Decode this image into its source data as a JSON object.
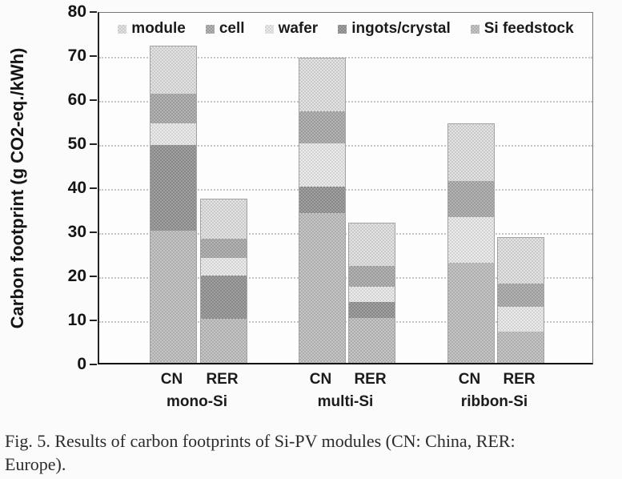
{
  "figure": {
    "caption_lines": [
      "Fig. 5.  Results of carbon footprints of Si-PV modules (CN: China, RER:",
      "Europe)."
    ]
  },
  "chart_data": {
    "type": "bar",
    "stacked": true,
    "title": "",
    "xlabel": "",
    "ylabel": "Carbon footprint (g CO2-eq./kWh)",
    "ylim": [
      0,
      80
    ],
    "ytick_step": 10,
    "grid": "horizontal dotted gridlines at each 10 units",
    "legend_position": "top-inside-horizontal",
    "legend_labels": [
      "module",
      "cell",
      "wafer",
      "ingots/crystal",
      "Si feedstock"
    ],
    "stack_order_bottom_to_top": [
      "Si feedstock",
      "ingots/crystal",
      "wafer",
      "cell",
      "module"
    ],
    "colors": {
      "module": [
        "#c9c9c9",
        "#e3e3e3"
      ],
      "cell": [
        "#9a9a9a",
        "#b4b4b4"
      ],
      "wafer": [
        "#d3d3d3",
        "#eaeaea"
      ],
      "ingots/crystal": [
        "#878787",
        "#a1a1a1"
      ],
      "Si feedstock": [
        "#acacac",
        "#c6c6c6"
      ]
    },
    "groups": [
      {
        "label": "mono-Si",
        "bars": [
          {
            "label": "CN",
            "total": 72.0,
            "segments": {
              "Si feedstock": 30.0,
              "ingots/crystal": 19.5,
              "wafer": 5.0,
              "cell": 6.7,
              "module": 10.8
            }
          },
          {
            "label": "RER",
            "total": 37.3,
            "segments": {
              "Si feedstock": 10.0,
              "ingots/crystal": 10.0,
              "wafer": 3.9,
              "cell": 4.4,
              "module": 9.0
            }
          }
        ]
      },
      {
        "label": "multi-Si",
        "bars": [
          {
            "label": "CN",
            "total": 69.2,
            "segments": {
              "Si feedstock": 34.0,
              "ingots/crystal": 6.1,
              "wafer": 9.8,
              "cell": 7.2,
              "module": 12.1
            }
          },
          {
            "label": "RER",
            "total": 31.8,
            "segments": {
              "Si feedstock": 10.3,
              "ingots/crystal": 3.5,
              "wafer": 3.6,
              "cell": 4.7,
              "module": 9.7
            }
          }
        ]
      },
      {
        "label": "ribbon-Si",
        "bars": [
          {
            "label": "CN",
            "total": 54.3,
            "segments": {
              "Si feedstock": 22.8,
              "ingots/crystal": 0,
              "wafer": 10.3,
              "cell": 8.3,
              "module": 12.9
            }
          },
          {
            "label": "RER",
            "total": 28.5,
            "segments": {
              "Si feedstock": 7.1,
              "ingots/crystal": 0,
              "wafer": 5.7,
              "cell": 5.2,
              "module": 10.5
            }
          }
        ]
      }
    ]
  }
}
